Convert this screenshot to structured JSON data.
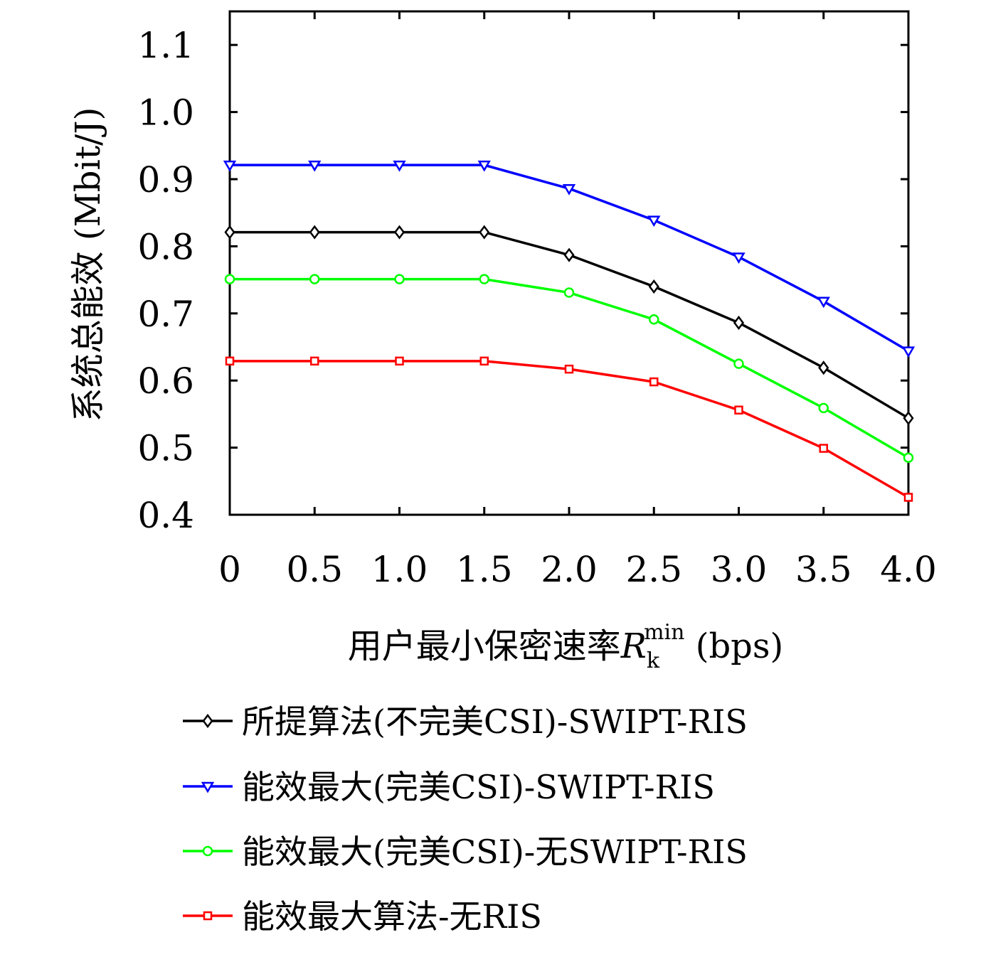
{
  "chart_data": {
    "type": "line",
    "x": [
      0,
      0.5,
      1.0,
      1.5,
      2.0,
      2.5,
      3.0,
      3.5,
      4.0
    ],
    "x_tick_labels": [
      "0",
      "0.5",
      "1.0",
      "1.5",
      "2.0",
      "2.5",
      "3.0",
      "3.5",
      "4.0"
    ],
    "y_tick_labels": [
      "0.4",
      "0.5",
      "0.6",
      "0.7",
      "0.8",
      "0.9",
      "1.0",
      "1.1"
    ],
    "y_ticks": [
      0.4,
      0.5,
      0.6,
      0.7,
      0.8,
      0.9,
      1.0,
      1.1
    ],
    "xlim": [
      0,
      4.0
    ],
    "ylim": [
      0.4,
      1.15
    ],
    "xlabel": "用户最小保密速率",
    "xlabel_symbol": "R",
    "xlabel_sub": "k",
    "xlabel_sup": "min",
    "xlabel_unit": " (bps)",
    "ylabel": "系统总能效 (Mbit/J)",
    "grid": false,
    "legend_position": "below",
    "series": [
      {
        "name": "所提算法(不完美CSI)-SWIPT-RIS",
        "color": "#000000",
        "marker": "diamond",
        "values": [
          0.821,
          0.821,
          0.821,
          0.821,
          0.787,
          0.74,
          0.686,
          0.619,
          0.544
        ]
      },
      {
        "name": "能效最大(完美CSI)-SWIPT-RIS",
        "color": "#0000ff",
        "marker": "triangle-down",
        "values": [
          0.921,
          0.921,
          0.921,
          0.921,
          0.886,
          0.839,
          0.784,
          0.718,
          0.644
        ]
      },
      {
        "name": "能效最大(完美CSI)-无SWIPT-RIS",
        "color": "#00ff00",
        "marker": "circle",
        "values": [
          0.751,
          0.751,
          0.751,
          0.751,
          0.731,
          0.691,
          0.625,
          0.559,
          0.485
        ]
      },
      {
        "name": "能效最大算法-无RIS",
        "color": "#ff0000",
        "marker": "square",
        "values": [
          0.629,
          0.629,
          0.629,
          0.629,
          0.617,
          0.598,
          0.556,
          0.499,
          0.426
        ]
      }
    ]
  }
}
